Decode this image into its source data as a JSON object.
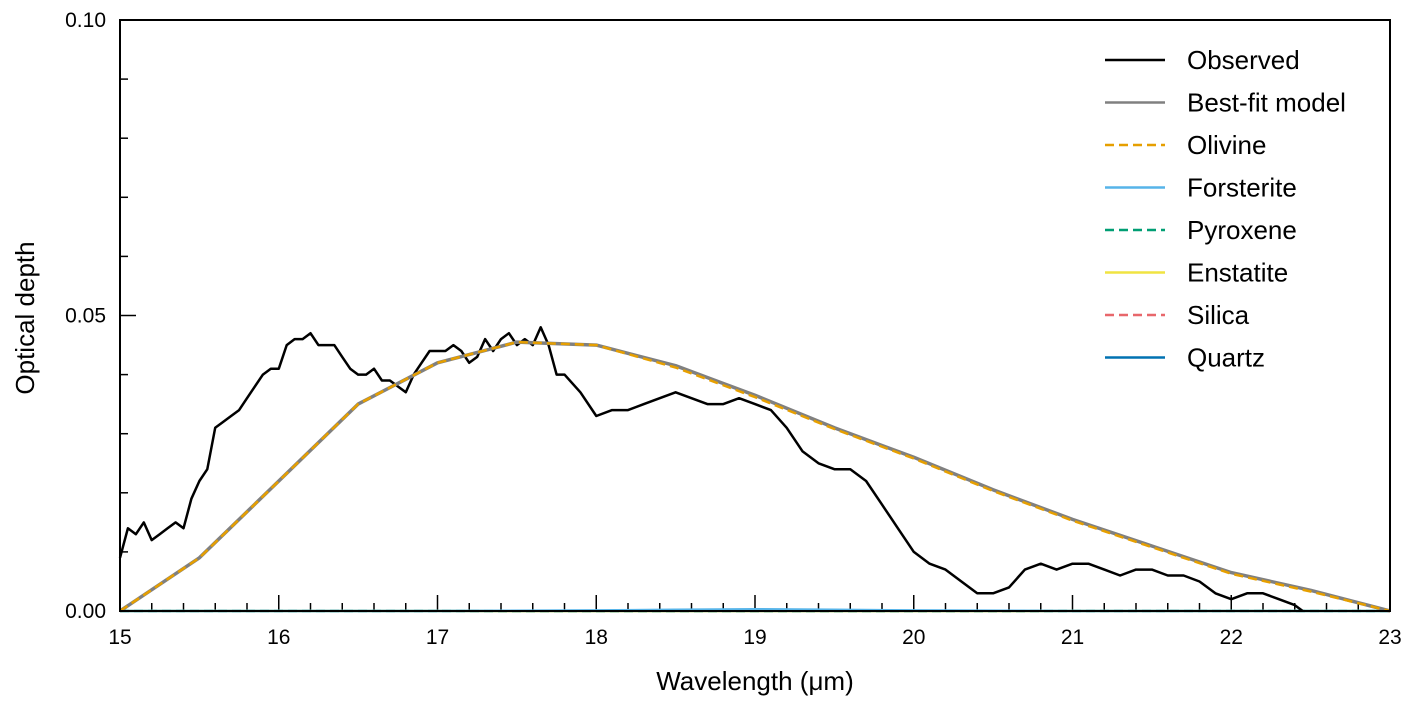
{
  "chart_data": {
    "type": "line",
    "xlabel": "Wavelength (μm)",
    "ylabel": "Optical depth",
    "xlim": [
      15,
      23
    ],
    "ylim": [
      0,
      0.1
    ],
    "x_ticks": [
      "15",
      "16",
      "17",
      "18",
      "19",
      "20",
      "21",
      "22",
      "23"
    ],
    "y_ticks": [
      "0.00",
      "0.05",
      "0.10"
    ],
    "legend_position": "top-right",
    "grid": false,
    "series": [
      {
        "name": "Observed",
        "color": "#000000",
        "dash": "solid",
        "x": [
          15.0,
          15.05,
          15.1,
          15.15,
          15.2,
          15.25,
          15.3,
          15.35,
          15.4,
          15.45,
          15.5,
          15.55,
          15.6,
          15.65,
          15.7,
          15.75,
          15.8,
          15.85,
          15.9,
          15.95,
          16.0,
          16.05,
          16.1,
          16.15,
          16.2,
          16.25,
          16.3,
          16.35,
          16.4,
          16.45,
          16.5,
          16.55,
          16.6,
          16.65,
          16.7,
          16.75,
          16.8,
          16.85,
          16.9,
          16.95,
          17.0,
          17.05,
          17.1,
          17.15,
          17.2,
          17.25,
          17.3,
          17.35,
          17.4,
          17.45,
          17.5,
          17.55,
          17.6,
          17.65,
          17.7,
          17.75,
          17.8,
          17.9,
          18.0,
          18.1,
          18.2,
          18.3,
          18.4,
          18.5,
          18.6,
          18.7,
          18.8,
          18.9,
          19.0,
          19.1,
          19.2,
          19.3,
          19.4,
          19.5,
          19.6,
          19.7,
          19.8,
          19.9,
          20.0,
          20.1,
          20.2,
          20.3,
          20.4,
          20.5,
          20.6,
          20.7,
          20.8,
          20.9,
          21.0,
          21.1,
          21.2,
          21.3,
          21.4,
          21.5,
          21.6,
          21.7,
          21.8,
          21.9,
          22.0,
          22.1,
          22.2,
          22.3,
          22.4,
          22.45
        ],
        "y": [
          0.009,
          0.014,
          0.013,
          0.015,
          0.012,
          0.013,
          0.014,
          0.015,
          0.014,
          0.019,
          0.022,
          0.024,
          0.031,
          0.032,
          0.033,
          0.034,
          0.036,
          0.038,
          0.04,
          0.041,
          0.041,
          0.045,
          0.046,
          0.046,
          0.047,
          0.045,
          0.045,
          0.045,
          0.043,
          0.041,
          0.04,
          0.04,
          0.041,
          0.039,
          0.039,
          0.038,
          0.037,
          0.04,
          0.042,
          0.044,
          0.044,
          0.044,
          0.045,
          0.044,
          0.042,
          0.043,
          0.046,
          0.044,
          0.046,
          0.047,
          0.045,
          0.046,
          0.045,
          0.048,
          0.045,
          0.04,
          0.04,
          0.037,
          0.033,
          0.034,
          0.034,
          0.035,
          0.036,
          0.037,
          0.036,
          0.035,
          0.035,
          0.036,
          0.035,
          0.034,
          0.031,
          0.027,
          0.025,
          0.024,
          0.024,
          0.022,
          0.018,
          0.014,
          0.01,
          0.008,
          0.007,
          0.005,
          0.003,
          0.003,
          0.004,
          0.007,
          0.008,
          0.007,
          0.008,
          0.008,
          0.007,
          0.006,
          0.007,
          0.007,
          0.006,
          0.006,
          0.005,
          0.003,
          0.002,
          0.003,
          0.003,
          0.002,
          0.001,
          0.0
        ]
      },
      {
        "name": "Best-fit model",
        "color": "#808080",
        "dash": "solid",
        "x": [
          15.0,
          15.5,
          16.0,
          16.5,
          17.0,
          17.5,
          18.0,
          18.5,
          19.0,
          19.5,
          20.0,
          20.5,
          21.0,
          21.5,
          22.0,
          22.5,
          23.0
        ],
        "y": [
          0.0,
          0.009,
          0.022,
          0.035,
          0.042,
          0.0455,
          0.045,
          0.0415,
          0.0365,
          0.031,
          0.026,
          0.0205,
          0.0155,
          0.011,
          0.0065,
          0.0035,
          0.0
        ]
      },
      {
        "name": "Olivine",
        "color": "#E69F00",
        "dash": "dashed",
        "x": [
          15.0,
          15.5,
          16.0,
          16.5,
          17.0,
          17.5,
          18.0,
          18.5,
          19.0,
          19.5,
          20.0,
          20.5,
          21.0,
          21.5,
          22.0,
          22.5,
          23.0
        ],
        "y": [
          0.0,
          0.009,
          0.022,
          0.035,
          0.042,
          0.0455,
          0.045,
          0.0412,
          0.0362,
          0.0308,
          0.0258,
          0.0203,
          0.0153,
          0.0108,
          0.0063,
          0.0033,
          0.0
        ]
      },
      {
        "name": "Forsterite",
        "color": "#56B4E9",
        "dash": "solid",
        "x": [
          15.0,
          16.0,
          17.0,
          18.0,
          18.5,
          19.0,
          19.5,
          20.0,
          21.0,
          22.0,
          23.0
        ],
        "y": [
          0.0,
          0.0,
          0.0,
          0.0001,
          0.0002,
          0.0003,
          0.0002,
          0.0001,
          0.0,
          0.0,
          0.0
        ]
      },
      {
        "name": "Pyroxene",
        "color": "#009E73",
        "dash": "dashed",
        "x": [
          15.0,
          23.0
        ],
        "y": [
          0.0,
          0.0
        ]
      },
      {
        "name": "Enstatite",
        "color": "#F0E442",
        "dash": "solid",
        "x": [
          15.0,
          23.0
        ],
        "y": [
          0.0,
          0.0
        ]
      },
      {
        "name": "Silica",
        "color": "#E8676B",
        "dash": "dashed",
        "x": [
          15.0,
          23.0
        ],
        "y": [
          0.0,
          0.0
        ]
      },
      {
        "name": "Quartz",
        "color": "#0072B2",
        "dash": "solid",
        "x": [
          15.0,
          23.0
        ],
        "y": [
          0.0,
          0.0
        ]
      }
    ]
  }
}
